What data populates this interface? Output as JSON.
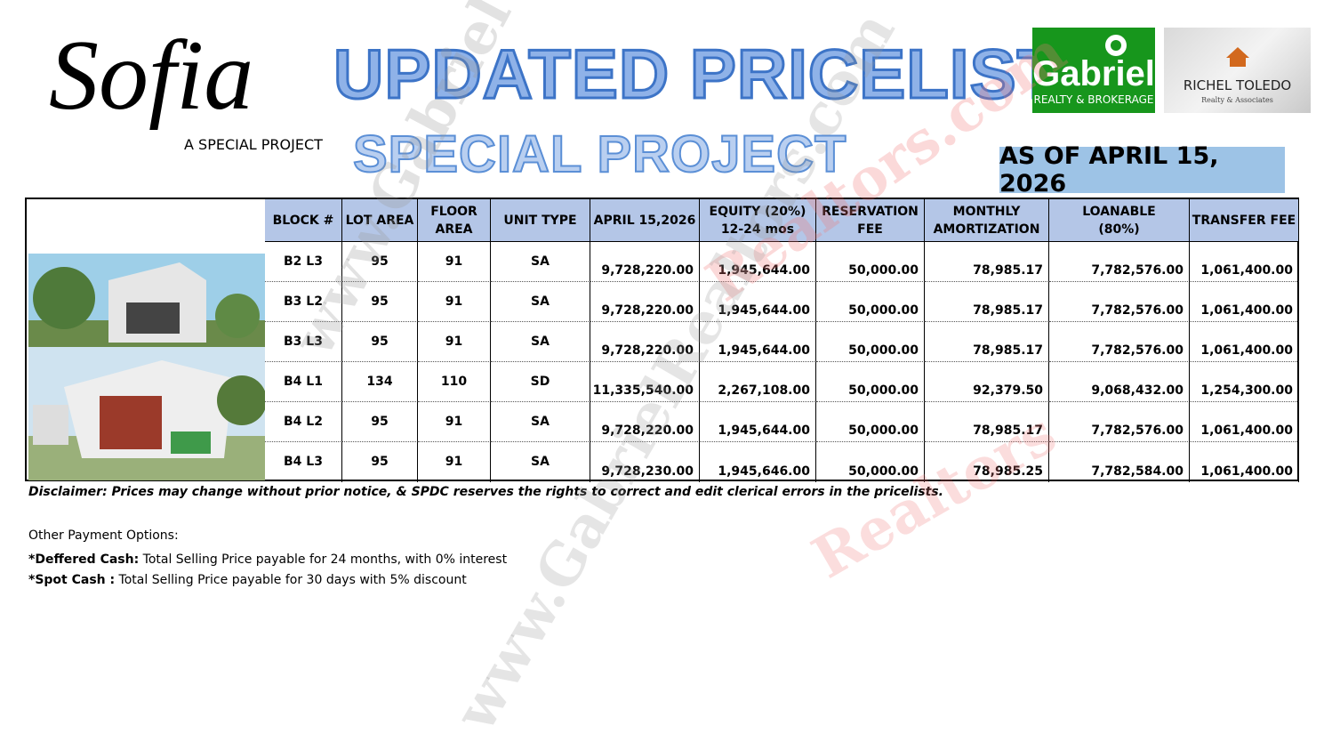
{
  "logo": {
    "name": "Sofia",
    "tagline": "A SPECIAL PROJECT"
  },
  "header": {
    "title": "UPDATED PRICELIST",
    "subtitle": "SPECIAL PROJECT",
    "date": "AS OF APRIL 15, 2026"
  },
  "brokers": [
    {
      "name": "Gabriel",
      "sub": "REALTY & BROKERAGE"
    },
    {
      "name": "RICHEL TOLEDO",
      "sub": "Realty & Associates"
    }
  ],
  "watermarks": [
    "www.Gabriel",
    "Realtors.com",
    "www.GabrielRealtors.com",
    "Realtors"
  ],
  "table": {
    "headers": [
      [
        "BLOCK #"
      ],
      [
        "LOT AREA"
      ],
      [
        "FLOOR",
        "AREA"
      ],
      [
        "UNIT TYPE"
      ],
      [
        "APRIL 15,2026"
      ],
      [
        "EQUITY (20%)",
        "12-24 mos"
      ],
      [
        "RESERVATION",
        "FEE"
      ],
      [
        "MONTHLY",
        "AMORTIZATION"
      ],
      [
        "LOANABLE",
        "(80%)"
      ],
      [
        "TRANSFER FEE"
      ]
    ],
    "rows": [
      [
        "B2 L3",
        "95",
        "91",
        "SA",
        "9,728,220.00",
        "1,945,644.00",
        "50,000.00",
        "78,985.17",
        "7,782,576.00",
        "1,061,400.00"
      ],
      [
        "B3 L2",
        "95",
        "91",
        "SA",
        "9,728,220.00",
        "1,945,644.00",
        "50,000.00",
        "78,985.17",
        "7,782,576.00",
        "1,061,400.00"
      ],
      [
        "B3 L3",
        "95",
        "91",
        "SA",
        "9,728,220.00",
        "1,945,644.00",
        "50,000.00",
        "78,985.17",
        "7,782,576.00",
        "1,061,400.00"
      ],
      [
        "B4 L1",
        "134",
        "110",
        "SD",
        "11,335,540.00",
        "2,267,108.00",
        "50,000.00",
        "92,379.50",
        "9,068,432.00",
        "1,254,300.00"
      ],
      [
        "B4 L2",
        "95",
        "91",
        "SA",
        "9,728,220.00",
        "1,945,644.00",
        "50,000.00",
        "78,985.17",
        "7,782,576.00",
        "1,061,400.00"
      ],
      [
        "B4 L3",
        "95",
        "91",
        "SA",
        "9,728,230.00",
        "1,945,646.00",
        "50,000.00",
        "78,985.25",
        "7,782,584.00",
        "1,061,400.00"
      ]
    ]
  },
  "disclaimer": "Disclaimer: Prices may change without prior notice, & SPDC reserves the rights to correct and edit clerical errors in the pricelists.",
  "payment": {
    "heading": "Other Payment Options:",
    "options": [
      {
        "label": "*Deffered Cash:",
        "text": " Total Selling Price payable for 24 months, with 0% interest"
      },
      {
        "label": "*Spot Cash :",
        "text": " Total Selling Price payable for 30 days with 5% discount"
      }
    ]
  }
}
